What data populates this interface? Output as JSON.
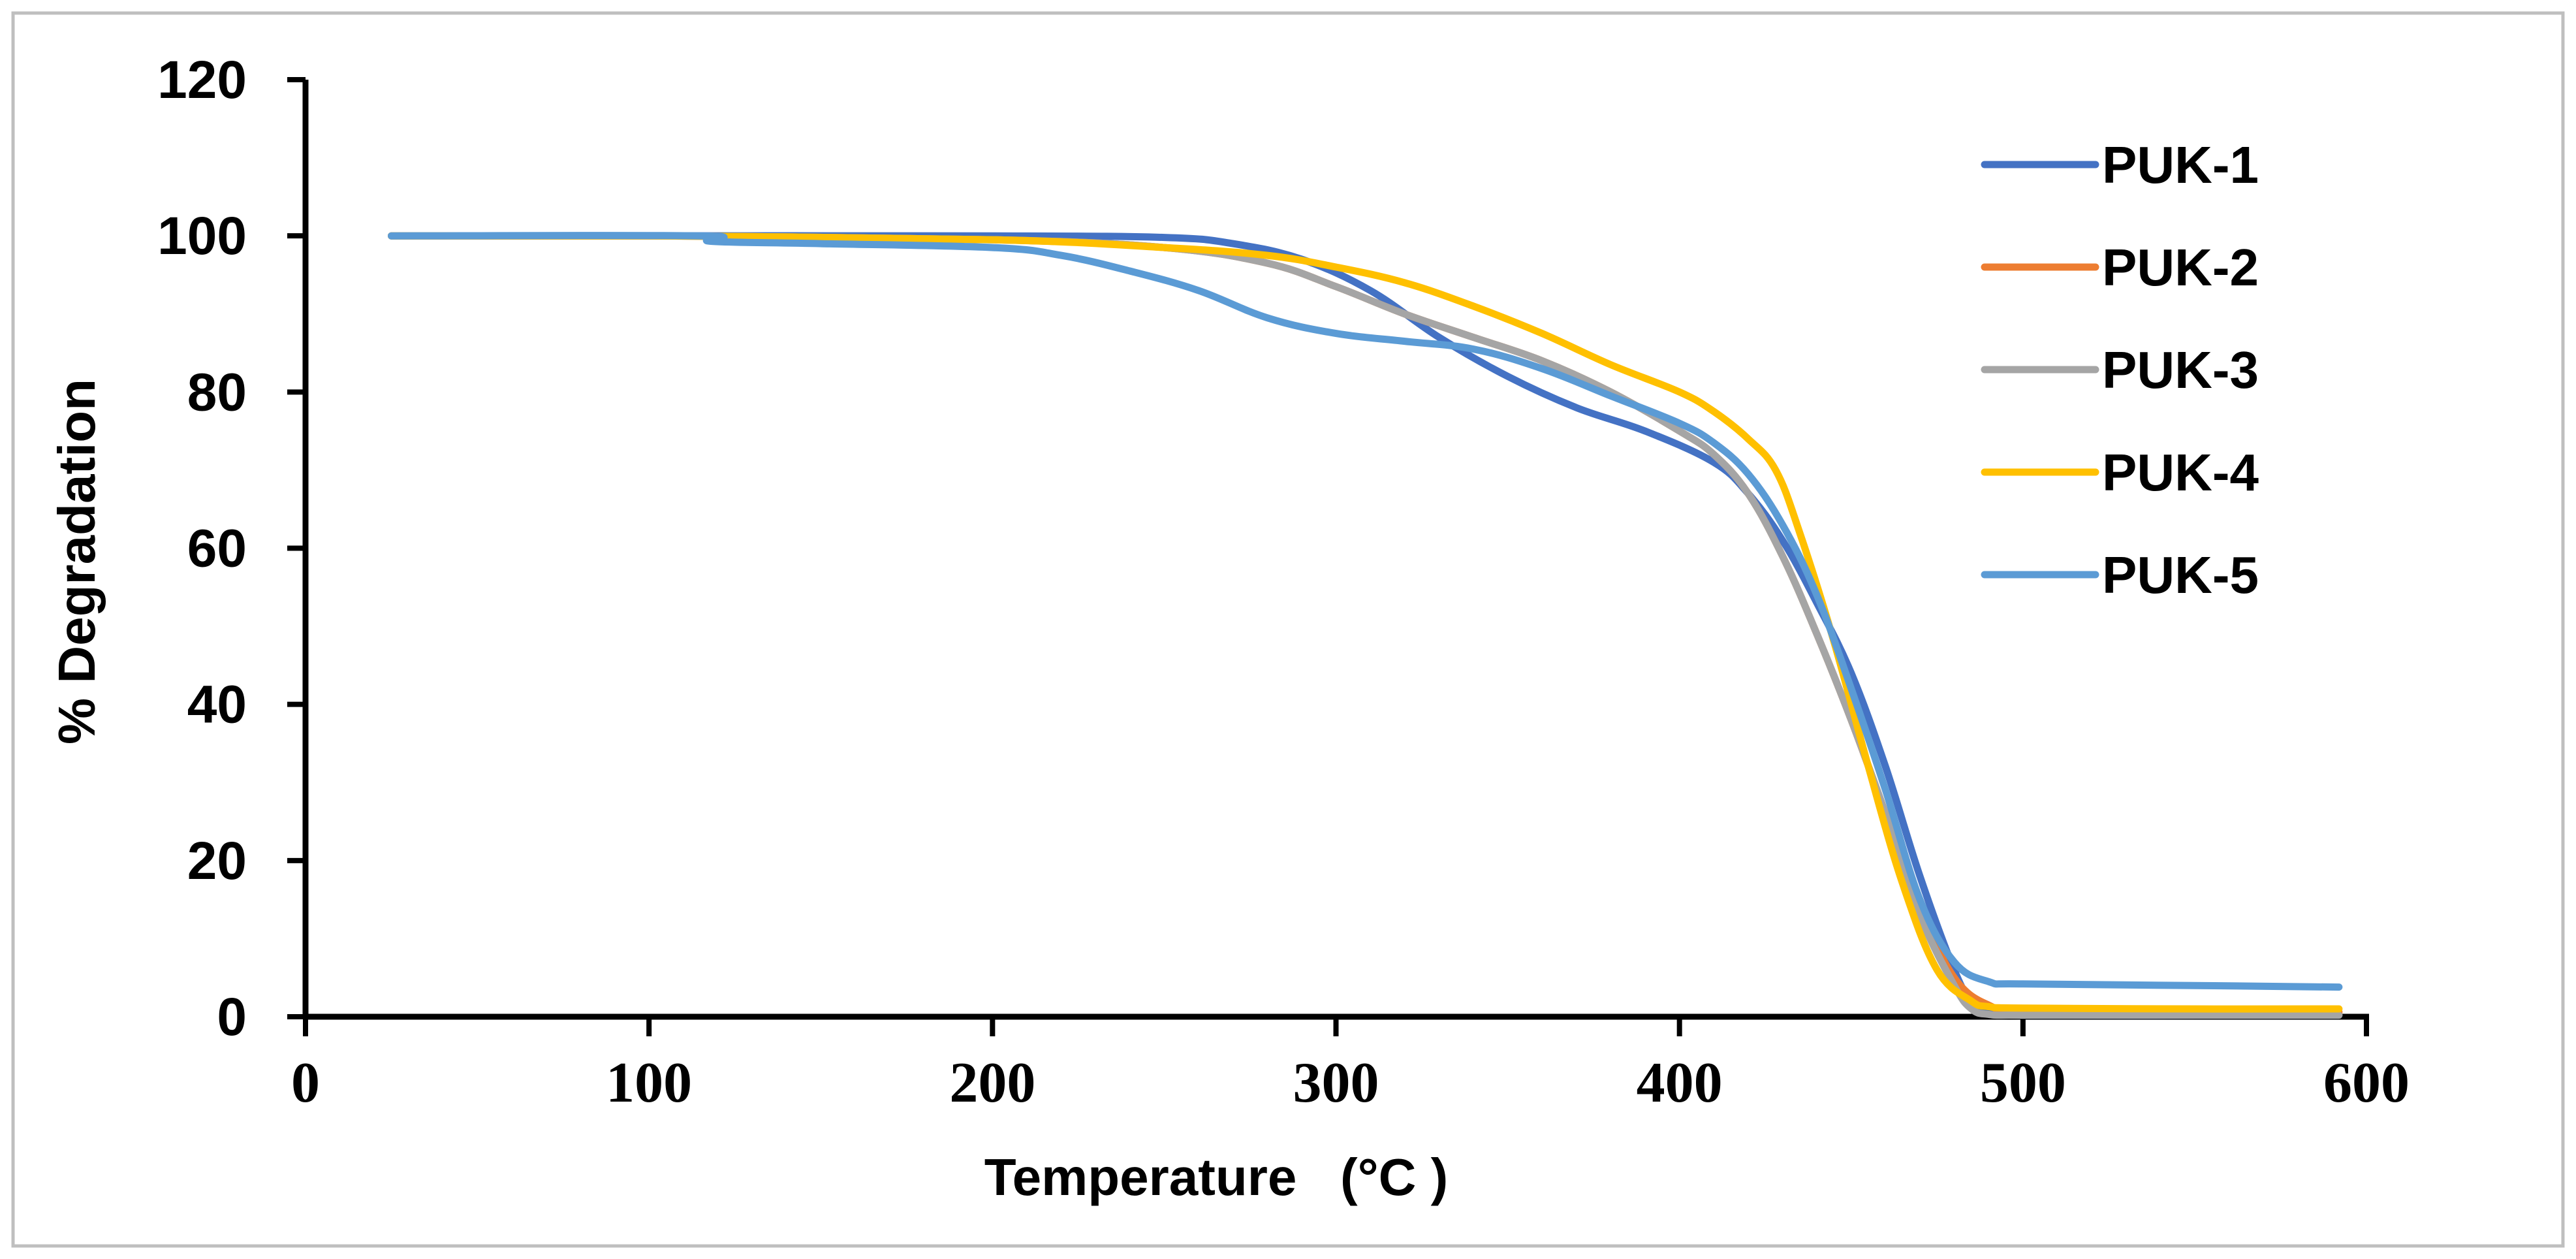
{
  "chart_data": {
    "type": "line",
    "title": "",
    "xlabel": "Temperature   (°C )",
    "ylabel": "%  Degradation",
    "xlim": [
      0,
      600
    ],
    "ylim": [
      0,
      120
    ],
    "xticks": [
      "0",
      "100",
      "200",
      "300",
      "400",
      "500",
      "600"
    ],
    "yticks": [
      "0",
      "20",
      "40",
      "60",
      "80",
      "100",
      "120"
    ],
    "grid": false,
    "legend_position": "top-right",
    "series": [
      {
        "name": "PUK-1",
        "color": "#4472C4",
        "x": [
          25,
          100,
          200,
          250,
          270,
          290,
          310,
          330,
          350,
          370,
          390,
          410,
          420,
          430,
          440,
          450,
          460,
          470,
          480,
          485,
          490,
          500,
          550,
          592
        ],
        "y": [
          100,
          100,
          100,
          99.8,
          99,
          97,
          93,
          87,
          82,
          78,
          75,
          71,
          67,
          61,
          53,
          44,
          32,
          18,
          6,
          2,
          0.5,
          0.2,
          0.2,
          0.2
        ]
      },
      {
        "name": "PUK-2",
        "color": "#ED7D31",
        "x": [
          25,
          100,
          200,
          250,
          280,
          300,
          320,
          340,
          360,
          380,
          400,
          410,
          420,
          430,
          440,
          450,
          460,
          470,
          480,
          490,
          500,
          550,
          592
        ],
        "y": [
          100,
          100,
          99.5,
          98.5,
          96.5,
          93.5,
          90,
          87,
          84,
          80,
          75,
          72,
          67,
          59,
          49,
          38,
          26,
          14,
          5,
          1.5,
          1,
          0.8,
          0.6
        ]
      },
      {
        "name": "PUK-3",
        "color": "#A5A5A5",
        "x": [
          25,
          100,
          200,
          250,
          280,
          300,
          320,
          340,
          360,
          380,
          400,
          410,
          420,
          430,
          440,
          450,
          460,
          470,
          480,
          485,
          490,
          500,
          550,
          592
        ],
        "y": [
          100,
          100,
          99.5,
          98.5,
          96.5,
          93.5,
          90,
          87,
          84,
          80,
          75,
          72,
          67,
          59,
          49,
          38,
          26,
          13,
          4,
          1,
          0.3,
          0.2,
          0.2,
          0.2
        ]
      },
      {
        "name": "PUK-4",
        "color": "#FFC000",
        "x": [
          25,
          100,
          200,
          250,
          280,
          300,
          320,
          340,
          360,
          380,
          400,
          410,
          420,
          428,
          435,
          445,
          455,
          465,
          475,
          485,
          490,
          500,
          550,
          592
        ],
        "y": [
          100,
          100,
          99.5,
          98.5,
          97.5,
          96,
          94,
          91,
          87.5,
          83.5,
          80,
          77.5,
          74,
          70,
          62,
          48,
          32,
          17,
          6,
          2,
          1.3,
          1.1,
          1,
          1
        ]
      },
      {
        "name": "PUK-5",
        "color": "#5B9BD5",
        "x": [
          25,
          115,
          118,
          150,
          200,
          220,
          240,
          260,
          280,
          300,
          320,
          340,
          360,
          380,
          400,
          410,
          420,
          430,
          440,
          450,
          460,
          470,
          480,
          490,
          500,
          550,
          592
        ],
        "y": [
          100,
          100,
          99.3,
          99,
          98.5,
          97.5,
          95.5,
          93,
          89.5,
          87.5,
          86.5,
          85.5,
          83,
          79.5,
          76,
          73.5,
          69.5,
          63,
          54,
          42,
          29,
          15,
          7,
          4.5,
          4.2,
          4,
          3.8
        ]
      }
    ]
  }
}
